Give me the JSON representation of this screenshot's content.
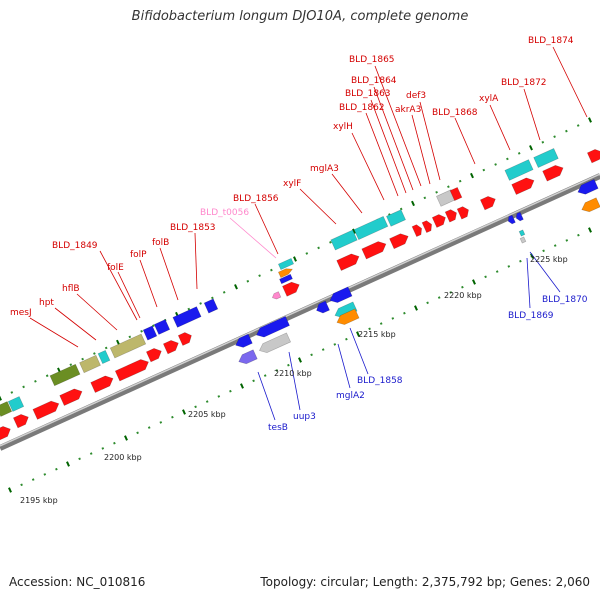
{
  "title": "Bifidobacterium longum DJO10A, complete genome",
  "footer": {
    "accession": "Accession: NC_010816",
    "summary": "Topology: circular; Length: 2,375,792 bp; Genes: 2,060"
  },
  "colors": {
    "label_forward": "#d40000",
    "label_reverse": "#1a1acc",
    "label_rna": "#ff88cc",
    "backbone": "#8a8a8a",
    "gene_red": "#ff1111",
    "gene_blue": "#1a1aee",
    "gene_cyan": "#22cccc",
    "gene_olive": "#6b8e23",
    "gene_khaki": "#bdb76b",
    "gene_gray": "#c8c8c8",
    "gene_orange": "#ff8c00",
    "gene_purple": "#7b68ee",
    "tick_major": "#006400",
    "tick_minor": "#2e8b2e"
  },
  "scale_labels": [
    "2195 kbp",
    "2200 kbp",
    "2205 kbp",
    "2210 kbp",
    "2215 kbp",
    "2220 kbp",
    "2225 kbp"
  ],
  "gene_labels_forward": [
    "mesJ",
    "hpt",
    "hflB",
    "BLD_1849",
    "folE",
    "folP",
    "folB",
    "BLD_1853",
    "BLD_1856",
    "xylF",
    "mglA3",
    "xylH",
    "BLD_1862",
    "BLD_1863",
    "BLD_1864",
    "BLD_1865",
    "akrA3",
    "def3",
    "BLD_1868",
    "xylA",
    "BLD_1872",
    "BLD_1874"
  ],
  "gene_labels_reverse": [
    "tesB",
    "uup3",
    "mglA2",
    "BLD_1858",
    "BLD_1869",
    "BLD_1870"
  ],
  "gene_labels_rna": [
    "BLD_t0056"
  ]
}
